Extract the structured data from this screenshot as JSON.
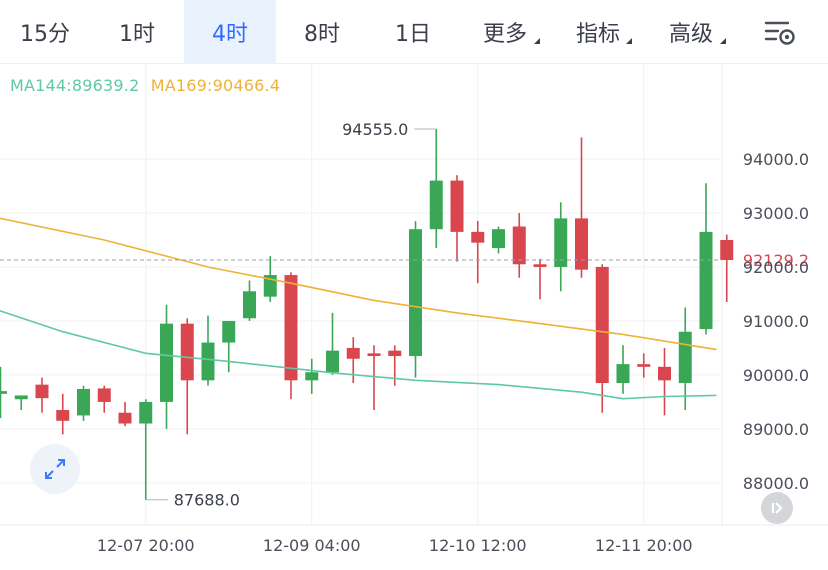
{
  "tabs": [
    {
      "label": "15分",
      "active": false,
      "dropdown": false
    },
    {
      "label": "1时",
      "active": false,
      "dropdown": false
    },
    {
      "label": "4时",
      "active": true,
      "dropdown": false
    },
    {
      "label": "8时",
      "active": false,
      "dropdown": false
    },
    {
      "label": "1日",
      "active": false,
      "dropdown": false
    },
    {
      "label": "更多",
      "active": false,
      "dropdown": true
    },
    {
      "label": "指标",
      "active": false,
      "dropdown": true
    },
    {
      "label": "高级",
      "active": false,
      "dropdown": true
    }
  ],
  "settings_icon": "settings-sliders-gear-icon",
  "expand_icon": "expand-arrows-icon",
  "scroll_icon": "scroll-to-latest-icon",
  "colors": {
    "up": "#3aa757",
    "down": "#d9464d",
    "ma144": "#5fc9a6",
    "ma169": "#eeb236",
    "active_tab": "#2f6bff",
    "price_marker": "#d9464d"
  },
  "chart_data": {
    "type": "candlestick",
    "indicators": [
      {
        "name": "MA144",
        "label": "MA144:89639.2",
        "value": 89639.2,
        "color": "#5fc9a6",
        "points": [
          [
            -0.5,
            91250
          ],
          [
            3,
            90800
          ],
          [
            7,
            90400
          ],
          [
            11,
            90250
          ],
          [
            16,
            90040
          ],
          [
            20,
            89900
          ],
          [
            24,
            89820
          ],
          [
            28,
            89680
          ],
          [
            30,
            89560
          ],
          [
            32,
            89600
          ],
          [
            34.5,
            89620
          ]
        ]
      },
      {
        "name": "MA169",
        "label": "MA169:90466.4",
        "value": 90466.4,
        "color": "#eeb236",
        "points": [
          [
            -0.5,
            92940
          ],
          [
            5,
            92500
          ],
          [
            10,
            92000
          ],
          [
            14,
            91700
          ],
          [
            18,
            91380
          ],
          [
            22,
            91150
          ],
          [
            26,
            90950
          ],
          [
            30,
            90750
          ],
          [
            34.5,
            90470
          ]
        ]
      }
    ],
    "candles": [
      {
        "o": 89650,
        "h": 90150,
        "l": 89200,
        "c": 89700
      },
      {
        "o": 89550,
        "h": 89600,
        "l": 89350,
        "c": 89620
      },
      {
        "o": 89820,
        "h": 89950,
        "l": 89300,
        "c": 89570
      },
      {
        "o": 89350,
        "h": 89650,
        "l": 88900,
        "c": 89150
      },
      {
        "o": 89250,
        "h": 89800,
        "l": 89150,
        "c": 89740
      },
      {
        "o": 89750,
        "h": 89800,
        "l": 89300,
        "c": 89500
      },
      {
        "o": 89300,
        "h": 89500,
        "l": 89050,
        "c": 89100
      },
      {
        "o": 89100,
        "h": 89550,
        "l": 87688,
        "c": 89500
      },
      {
        "o": 89500,
        "h": 91300,
        "l": 89000,
        "c": 90950
      },
      {
        "o": 90950,
        "h": 91050,
        "l": 88900,
        "c": 89900
      },
      {
        "o": 89900,
        "h": 91100,
        "l": 89800,
        "c": 90600
      },
      {
        "o": 90600,
        "h": 91000,
        "l": 90050,
        "c": 91000
      },
      {
        "o": 91050,
        "h": 91750,
        "l": 91000,
        "c": 91550
      },
      {
        "o": 91450,
        "h": 92200,
        "l": 91350,
        "c": 91850
      },
      {
        "o": 91850,
        "h": 91900,
        "l": 89550,
        "c": 89900
      },
      {
        "o": 89900,
        "h": 90300,
        "l": 89650,
        "c": 90050
      },
      {
        "o": 90050,
        "h": 91150,
        "l": 90000,
        "c": 90450
      },
      {
        "o": 90500,
        "h": 90700,
        "l": 89850,
        "c": 90300
      },
      {
        "o": 90400,
        "h": 90550,
        "l": 89350,
        "c": 90350
      },
      {
        "o": 90450,
        "h": 90550,
        "l": 89800,
        "c": 90350
      },
      {
        "o": 90350,
        "h": 92850,
        "l": 89950,
        "c": 92700
      },
      {
        "o": 92700,
        "h": 94555,
        "l": 92350,
        "c": 93600
      },
      {
        "o": 93600,
        "h": 93700,
        "l": 92100,
        "c": 92650
      },
      {
        "o": 92650,
        "h": 92850,
        "l": 91700,
        "c": 92450
      },
      {
        "o": 92350,
        "h": 92750,
        "l": 92250,
        "c": 92700
      },
      {
        "o": 92750,
        "h": 93000,
        "l": 91800,
        "c": 92050
      },
      {
        "o": 92050,
        "h": 92150,
        "l": 91400,
        "c": 92000
      },
      {
        "o": 92000,
        "h": 93200,
        "l": 91550,
        "c": 92900
      },
      {
        "o": 92900,
        "h": 94400,
        "l": 91800,
        "c": 91950
      },
      {
        "o": 92000,
        "h": 92050,
        "l": 89300,
        "c": 89850
      },
      {
        "o": 89850,
        "h": 90550,
        "l": 89650,
        "c": 90200
      },
      {
        "o": 90200,
        "h": 90400,
        "l": 89950,
        "c": 90150
      },
      {
        "o": 90150,
        "h": 90500,
        "l": 89250,
        "c": 89900
      },
      {
        "o": 89850,
        "h": 91250,
        "l": 89350,
        "c": 90800
      },
      {
        "o": 90850,
        "h": 93550,
        "l": 90750,
        "c": 92650
      },
      {
        "o": 92500,
        "h": 92600,
        "l": 91350,
        "c": 92129.2
      }
    ],
    "yaxis": {
      "ticks": [
        88000,
        89000,
        90000,
        91000,
        92000,
        93000,
        94000
      ],
      "labels": [
        "88000.0",
        "89000.0",
        "90000.0",
        "91000.0",
        "92000.0",
        "93000.0",
        "94000.0"
      ],
      "range": [
        87220,
        95760
      ]
    },
    "xaxis": {
      "ticks": [
        {
          "index": 7,
          "label": "12-07 20:00"
        },
        {
          "index": 15,
          "label": "12-09 04:00"
        },
        {
          "index": 23,
          "label": "12-10 12:00"
        },
        {
          "index": 31,
          "label": "12-11 20:00"
        }
      ]
    },
    "current_price": {
      "value": 92129.2,
      "label": "92129.2"
    },
    "high_label": {
      "value": 94555,
      "label": "94555.0",
      "index": 21
    },
    "low_label": {
      "value": 87688,
      "label": "87688.0",
      "index": 7
    },
    "grid": true
  }
}
